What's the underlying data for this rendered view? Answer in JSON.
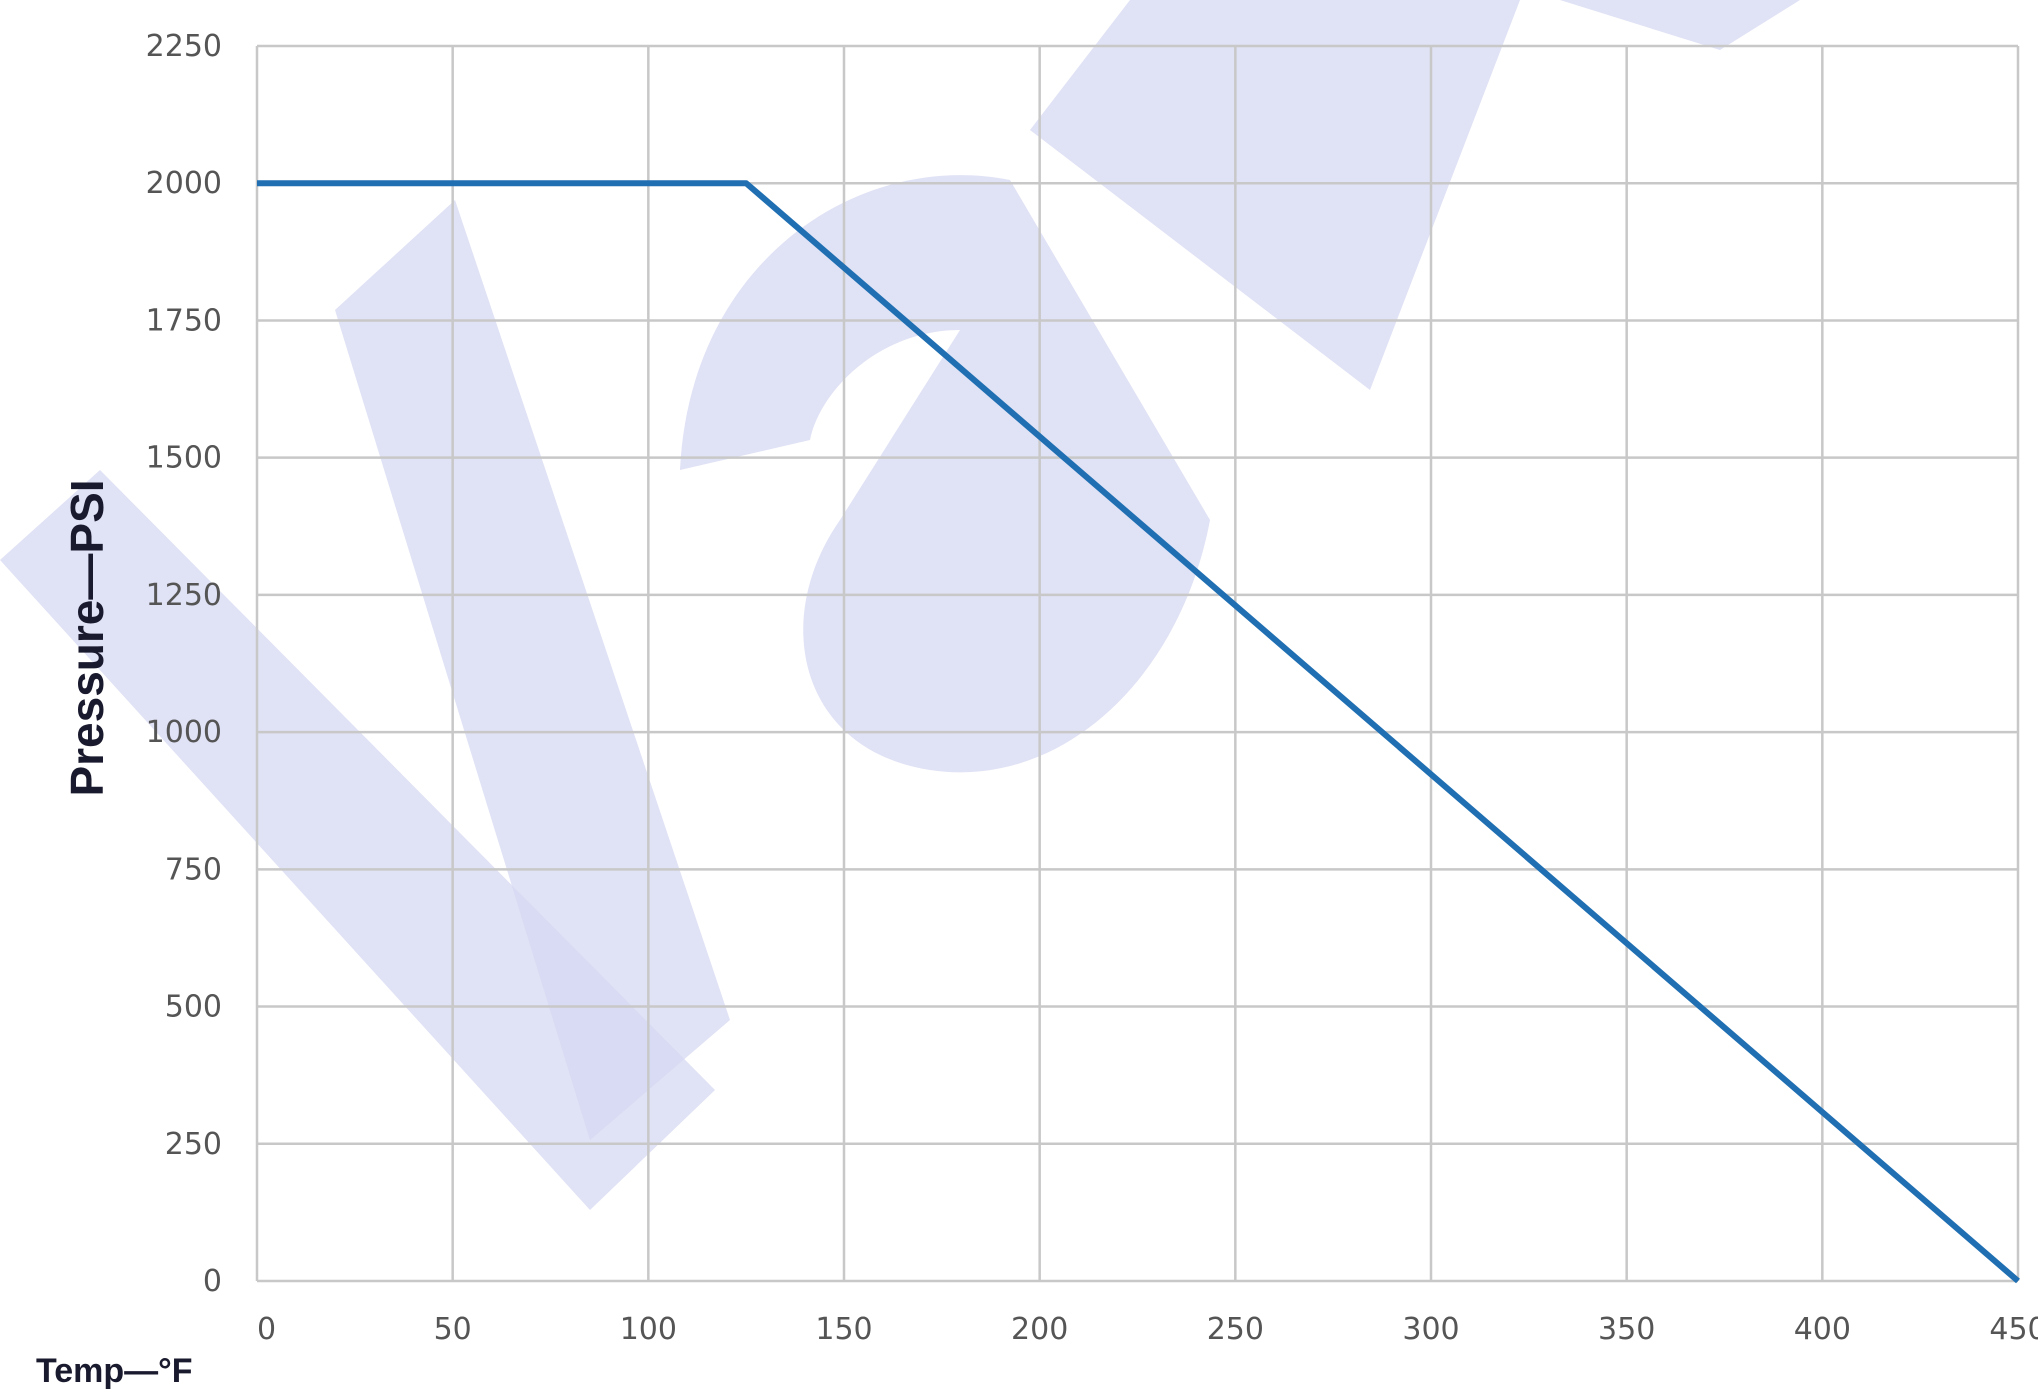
{
  "chart_data": {
    "type": "line",
    "xlabel": "Temp—°F",
    "ylabel": "Pressure—PSI",
    "xlim": [
      0,
      450
    ],
    "ylim": [
      0,
      2250
    ],
    "x_ticks": [
      "0",
      "50",
      "100",
      "150",
      "200",
      "250",
      "300",
      "350",
      "400",
      "450"
    ],
    "y_ticks": [
      "0",
      "250",
      "500",
      "750",
      "1000",
      "1250",
      "1500",
      "1750",
      "2000",
      "2250"
    ],
    "grid": true,
    "series": [
      {
        "color": "#1f6fb2",
        "points": [
          {
            "x": 0,
            "y": 2000
          },
          {
            "x": 125,
            "y": 2000
          },
          {
            "x": 450,
            "y": 0
          }
        ]
      }
    ],
    "colors": {
      "grid": "#c8c8c8",
      "line": "#1f6fb2",
      "watermark": "#d6d8f2"
    }
  }
}
